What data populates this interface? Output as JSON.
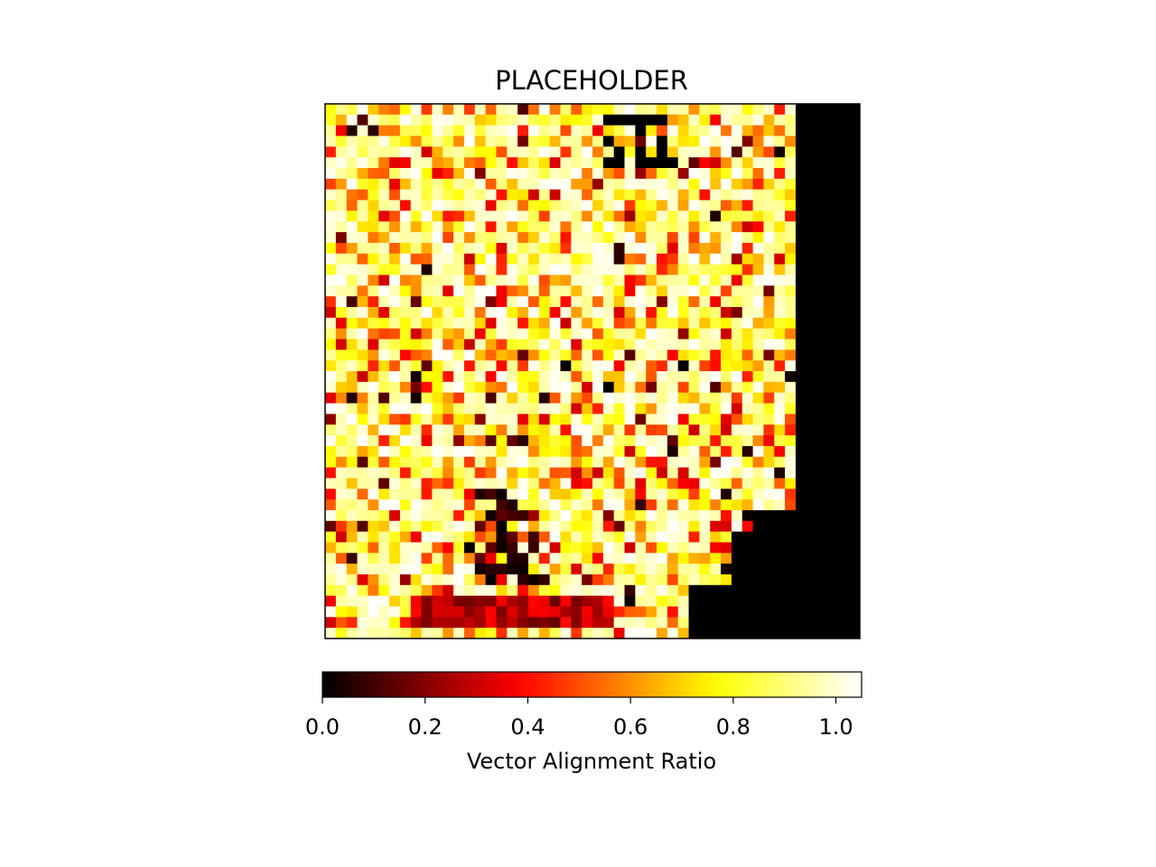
{
  "chart_data": {
    "type": "heatmap",
    "title": "PLACEHOLDER",
    "colormap": "hot",
    "grid_size": 50,
    "value_range": [
      0.0,
      1.05
    ],
    "colorbar": {
      "label": "Vector Alignment Ratio",
      "ticks": [
        0.0,
        0.2,
        0.4,
        0.6,
        0.8,
        1.0
      ],
      "tick_labels": [
        "0.0",
        "0.2",
        "0.4",
        "0.6",
        "0.8",
        "1.0"
      ],
      "location": "bottom"
    },
    "axes_ticks_visible": false,
    "grid": false,
    "data_description_note": "",
    "dark_regions": [
      {
        "row_start": 0,
        "row_end": 50,
        "col_start": 44,
        "col_end": 50,
        "value": 0.0
      }
    ]
  }
}
